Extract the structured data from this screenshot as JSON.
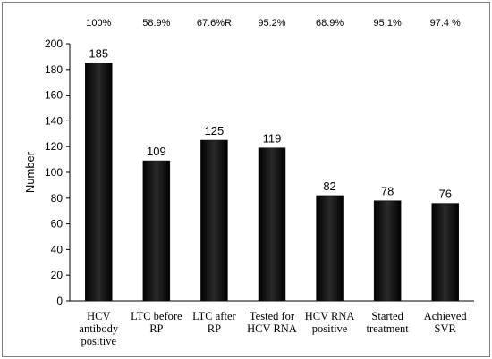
{
  "chart_data": {
    "type": "bar",
    "title": "",
    "xlabel": "",
    "ylabel": "Number",
    "ylim": [
      0,
      200
    ],
    "yticks": [
      0,
      20,
      40,
      60,
      80,
      100,
      120,
      140,
      160,
      180,
      200
    ],
    "grid": false,
    "legend": "none",
    "bar_color": "#111111",
    "categories": [
      [
        "HCV",
        "antibody",
        "positive"
      ],
      [
        "LTC before",
        "RP"
      ],
      [
        "LTC after",
        "RP"
      ],
      [
        "Tested for",
        "HCV RNA"
      ],
      [
        "HCV RNA",
        "positive"
      ],
      [
        "Started",
        "treatment"
      ],
      [
        "Achieved",
        "SVR"
      ]
    ],
    "values": [
      185,
      109,
      125,
      119,
      82,
      78,
      76
    ],
    "data_labels": [
      "185",
      "109",
      "125",
      "119",
      "82",
      "78",
      "76"
    ],
    "percent_labels": [
      "100%",
      "58.9%",
      "67.6%R",
      "95.2%",
      "68.9%",
      "95.1%",
      "97.4 %"
    ]
  }
}
